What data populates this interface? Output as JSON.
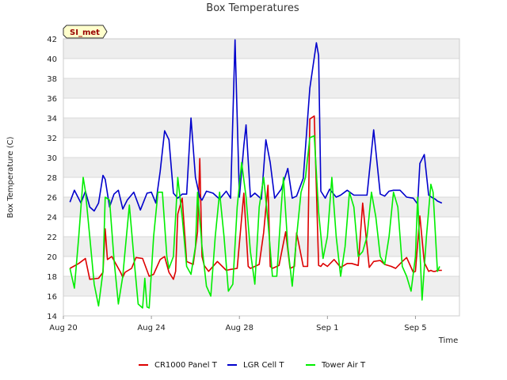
{
  "chart_data": {
    "type": "line",
    "title": "Box Temperatures",
    "xlabel": "Time",
    "ylabel": "Box Temperature (C)",
    "badge": "SI_met",
    "x_unit": "days since Aug 20",
    "xlim": [
      0,
      18
    ],
    "ylim": [
      14,
      42
    ],
    "yticks": [
      14,
      16,
      18,
      20,
      22,
      24,
      26,
      28,
      30,
      32,
      34,
      36,
      38,
      40,
      42
    ],
    "xticks": [
      {
        "value": 0,
        "label": "Aug 20"
      },
      {
        "value": 4,
        "label": "Aug 24"
      },
      {
        "value": 8,
        "label": "Aug 28"
      },
      {
        "value": 12,
        "label": "Sep 1"
      },
      {
        "value": 16,
        "label": "Sep 5"
      }
    ],
    "colors": {
      "CR1000 Panel T": "#dd0000",
      "LGR Cell T": "#0000cc",
      "Tower Air T": "#00ee00",
      "badge_bg": "#ffffcc",
      "badge_text": "#990000",
      "band": "#eeeeee"
    },
    "series": [
      {
        "name": "CR1000 Panel T",
        "x": [
          0.3,
          0.7,
          1.0,
          1.2,
          1.6,
          1.8,
          1.9,
          2.0,
          2.2,
          2.6,
          2.7,
          2.8,
          3.1,
          3.3,
          3.6,
          3.9,
          4.1,
          4.4,
          4.6,
          4.8,
          5.0,
          5.1,
          5.2,
          5.4,
          5.6,
          5.9,
          6.1,
          6.2,
          6.3,
          6.4,
          6.6,
          7.0,
          7.4,
          7.6,
          7.9,
          8.2,
          8.4,
          8.5,
          8.6,
          8.9,
          9.1,
          9.3,
          9.4,
          9.5,
          9.8,
          10.1,
          10.3,
          10.5,
          10.6,
          10.9,
          11.1,
          11.2,
          11.4,
          11.6,
          11.7,
          11.8,
          12.0,
          12.3,
          12.6,
          12.9,
          13.1,
          13.4,
          13.6,
          13.9,
          14.1,
          14.4,
          14.6,
          14.9,
          15.1,
          15.4,
          15.6,
          15.9,
          16.0,
          16.2,
          16.4,
          16.6,
          16.7,
          16.8,
          16.9,
          17.0,
          17.2
        ],
        "values": [
          18.8,
          19.3,
          19.8,
          17.7,
          17.8,
          18.4,
          22.8,
          19.7,
          20.0,
          18.4,
          17.9,
          18.4,
          18.8,
          19.9,
          19.8,
          18.0,
          18.2,
          19.7,
          20.0,
          18.4,
          17.7,
          18.5,
          24.3,
          25.9,
          19.5,
          19.2,
          22.5,
          29.9,
          20.0,
          19.1,
          18.5,
          19.5,
          18.6,
          18.7,
          18.8,
          26.4,
          19.0,
          18.8,
          18.9,
          19.2,
          22.4,
          27.2,
          19.0,
          18.8,
          19.1,
          22.5,
          18.8,
          19.0,
          22.4,
          19.0,
          19.0,
          33.9,
          34.2,
          19.1,
          19.0,
          19.3,
          19.0,
          19.7,
          18.9,
          19.3,
          19.3,
          19.1,
          25.4,
          18.9,
          19.5,
          19.6,
          19.2,
          19.0,
          18.8,
          19.5,
          19.9,
          18.4,
          18.5,
          24.1,
          19.4,
          18.5,
          18.6,
          18.5,
          18.5,
          18.6,
          18.6
        ]
      },
      {
        "name": "LGR Cell T",
        "x": [
          0.3,
          0.5,
          0.8,
          1.0,
          1.2,
          1.4,
          1.6,
          1.8,
          1.9,
          2.1,
          2.3,
          2.5,
          2.7,
          2.9,
          3.2,
          3.5,
          3.8,
          4.0,
          4.2,
          4.4,
          4.6,
          4.8,
          5.0,
          5.2,
          5.4,
          5.6,
          5.8,
          6.0,
          6.2,
          6.3,
          6.5,
          6.8,
          7.1,
          7.4,
          7.6,
          7.8,
          8.0,
          8.2,
          8.3,
          8.5,
          8.7,
          9.0,
          9.2,
          9.4,
          9.6,
          9.9,
          10.2,
          10.4,
          10.6,
          10.9,
          11.2,
          11.5,
          11.6,
          11.7,
          11.9,
          12.1,
          12.4,
          12.6,
          12.9,
          13.2,
          13.5,
          13.8,
          14.1,
          14.4,
          14.6,
          14.8,
          15.0,
          15.3,
          15.6,
          15.9,
          16.1,
          16.2,
          16.4,
          16.6,
          16.8,
          16.9,
          17.0,
          17.2
        ],
        "values": [
          25.5,
          26.7,
          25.4,
          26.6,
          25.0,
          24.6,
          25.4,
          28.2,
          27.8,
          25.0,
          26.3,
          26.7,
          24.8,
          25.7,
          26.5,
          24.7,
          26.4,
          26.5,
          25.4,
          28.6,
          32.7,
          31.8,
          26.4,
          25.9,
          26.3,
          26.3,
          34.0,
          28.0,
          26.0,
          25.7,
          26.6,
          26.4,
          25.8,
          26.6,
          25.9,
          41.9,
          26.0,
          31.2,
          33.3,
          26.0,
          26.4,
          25.8,
          31.8,
          29.5,
          25.9,
          26.8,
          28.9,
          25.9,
          26.1,
          27.9,
          37.0,
          41.6,
          40.3,
          26.6,
          25.9,
          26.8,
          26.0,
          26.2,
          26.7,
          26.2,
          26.2,
          26.2,
          32.8,
          26.3,
          26.1,
          26.6,
          26.7,
          26.7,
          26.0,
          25.9,
          25.3,
          29.4,
          30.3,
          26.2,
          25.9,
          25.8,
          25.6,
          25.4
        ]
      },
      {
        "name": "Tower Air T",
        "x": [
          0.3,
          0.5,
          0.7,
          0.9,
          1.0,
          1.2,
          1.4,
          1.6,
          1.8,
          1.9,
          2.1,
          2.3,
          2.5,
          2.7,
          2.8,
          3.0,
          3.2,
          3.4,
          3.6,
          3.7,
          3.8,
          3.9,
          4.1,
          4.3,
          4.5,
          4.7,
          4.8,
          5.0,
          5.2,
          5.4,
          5.6,
          5.8,
          6.0,
          6.1,
          6.3,
          6.5,
          6.7,
          6.9,
          7.1,
          7.3,
          7.5,
          7.7,
          7.9,
          8.1,
          8.3,
          8.5,
          8.7,
          8.9,
          9.1,
          9.3,
          9.5,
          9.7,
          9.9,
          10.0,
          10.2,
          10.4,
          10.6,
          10.8,
          11.0,
          11.2,
          11.4,
          11.6,
          11.8,
          12.0,
          12.2,
          12.4,
          12.6,
          12.8,
          13.0,
          13.2,
          13.4,
          13.6,
          13.8,
          14.0,
          14.2,
          14.4,
          14.6,
          14.8,
          15.0,
          15.2,
          15.4,
          15.6,
          15.8,
          16.0,
          16.1,
          16.3,
          16.5,
          16.7,
          16.8,
          17.0,
          17.1
        ],
        "values": [
          18.8,
          16.8,
          22.0,
          28.0,
          26.6,
          22.0,
          17.2,
          15.0,
          18.5,
          26.0,
          25.7,
          19.7,
          15.2,
          18.0,
          20.5,
          25.2,
          20.0,
          15.2,
          14.8,
          17.8,
          14.9,
          14.8,
          22.0,
          26.5,
          26.5,
          20.0,
          18.8,
          20.0,
          28.0,
          24.0,
          19.0,
          18.2,
          21.0,
          26.5,
          21.0,
          17.0,
          16.0,
          22.0,
          26.5,
          22.0,
          16.5,
          17.2,
          25.0,
          29.5,
          26.0,
          20.5,
          17.2,
          25.0,
          28.0,
          23.5,
          18.0,
          18.0,
          25.0,
          28.0,
          21.0,
          17.0,
          22.0,
          26.5,
          28.0,
          32.0,
          32.2,
          24.5,
          19.8,
          22.0,
          28.0,
          22.0,
          18.0,
          21.0,
          26.5,
          25.0,
          20.0,
          20.5,
          22.0,
          26.5,
          24.0,
          20.0,
          19.2,
          22.0,
          26.5,
          25.0,
          19.0,
          18.0,
          16.5,
          20.0,
          26.0,
          15.6,
          22.0,
          27.3,
          26.5,
          18.5,
          19.0
        ]
      }
    ]
  }
}
